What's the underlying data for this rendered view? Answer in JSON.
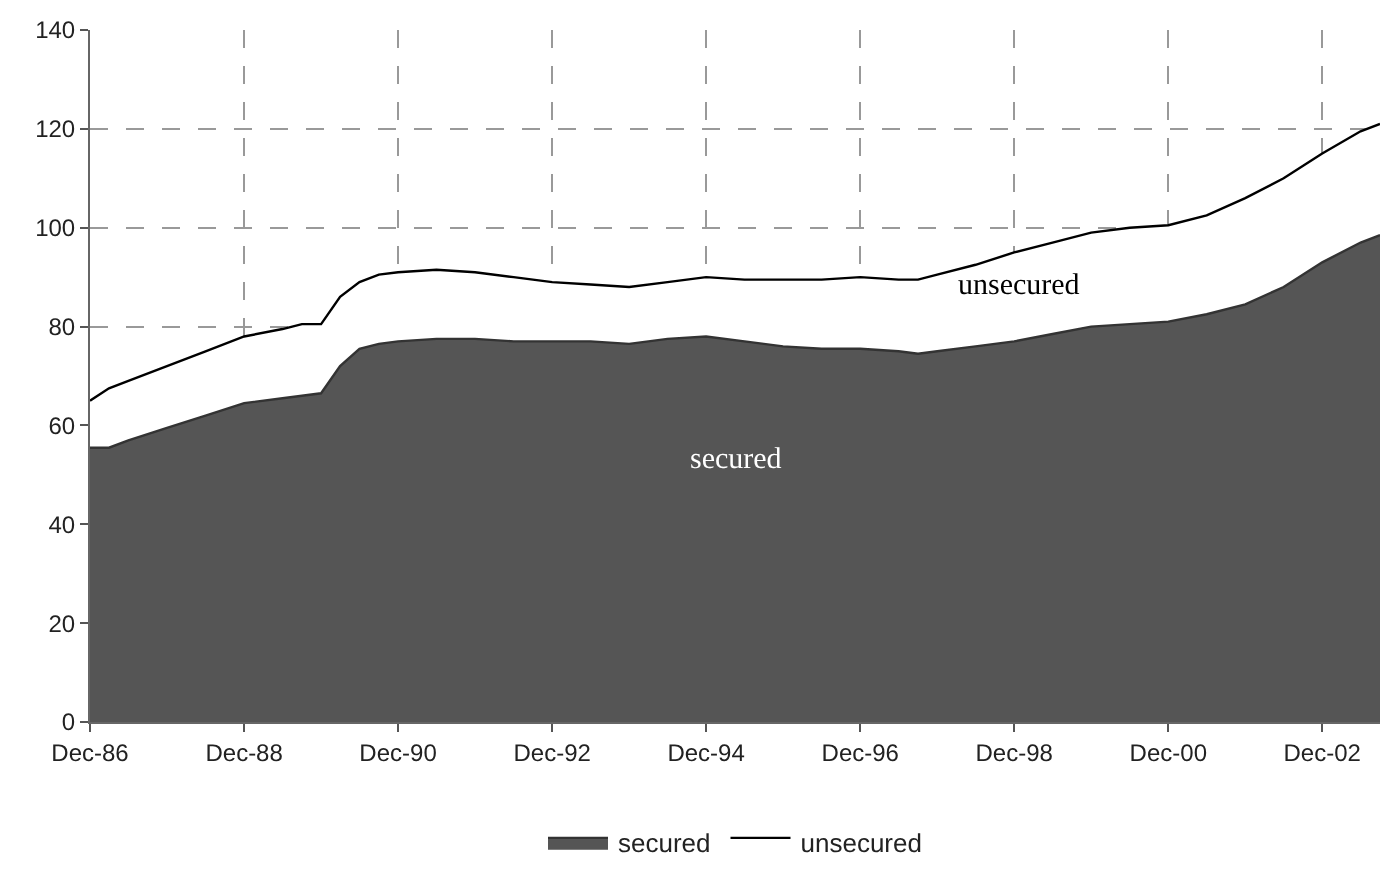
{
  "chart_data": {
    "type": "area",
    "stacked": true,
    "x": [
      "1986-12",
      "1987-03",
      "1987-06",
      "1987-12",
      "1988-06",
      "1988-12",
      "1989-06",
      "1989-09",
      "1989-12",
      "1990-03",
      "1990-06",
      "1990-09",
      "1990-12",
      "1991-06",
      "1991-12",
      "1992-06",
      "1992-12",
      "1993-06",
      "1993-12",
      "1994-06",
      "1994-12",
      "1995-06",
      "1995-12",
      "1996-06",
      "1996-12",
      "1997-06",
      "1997-09",
      "1997-12",
      "1998-06",
      "1998-12",
      "1999-06",
      "1999-12",
      "2000-06",
      "2000-12",
      "2001-06",
      "2001-12",
      "2002-06",
      "2002-12",
      "2003-06",
      "2003-09"
    ],
    "series": [
      {
        "name": "secured",
        "color": "#555555",
        "values": [
          55.5,
          55.5,
          57,
          59.5,
          62,
          64.5,
          65.5,
          66,
          66.5,
          72,
          75.5,
          76.5,
          77,
          77.5,
          77.5,
          77,
          77,
          77,
          76.5,
          77.5,
          78,
          77,
          76,
          75.5,
          75.5,
          75,
          74.5,
          75,
          76,
          77,
          78.5,
          80,
          80.5,
          81,
          82.5,
          84.5,
          88,
          93,
          97,
          98.5
        ]
      },
      {
        "name": "unsecured",
        "color": "#ffffff",
        "values": [
          9.5,
          12,
          12,
          12.5,
          13,
          13.5,
          14,
          14.5,
          14,
          14,
          13.5,
          14,
          14,
          14,
          13.5,
          13,
          12,
          11.5,
          11.5,
          11.5,
          12,
          12.5,
          13.5,
          14,
          14.5,
          14.5,
          15,
          15.5,
          16.5,
          18,
          18.5,
          19,
          19.5,
          19.5,
          20,
          21.5,
          22,
          22,
          22.5,
          22.5
        ]
      }
    ],
    "xlim": [
      "1986-12",
      "2003-09"
    ],
    "xticks": [
      {
        "value": "1986-12",
        "label": "Dec-86"
      },
      {
        "value": "1988-12",
        "label": "Dec-88"
      },
      {
        "value": "1990-12",
        "label": "Dec-90"
      },
      {
        "value": "1992-12",
        "label": "Dec-92"
      },
      {
        "value": "1994-12",
        "label": "Dec-94"
      },
      {
        "value": "1996-12",
        "label": "Dec-96"
      },
      {
        "value": "1998-12",
        "label": "Dec-98"
      },
      {
        "value": "2000-12",
        "label": "Dec-00"
      },
      {
        "value": "2002-12",
        "label": "Dec-02"
      }
    ],
    "ylim": [
      0,
      140
    ],
    "yticks": [
      0,
      20,
      40,
      60,
      80,
      100,
      120,
      140
    ],
    "grid": true,
    "legend": "bottom",
    "line_style": "solid",
    "annotations": [
      "unsecured",
      "secured"
    ]
  }
}
